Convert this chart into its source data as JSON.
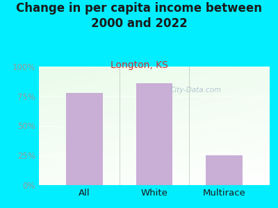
{
  "title": "Change in per capita income between\n2000 and 2022",
  "subtitle": "Longton, KS",
  "categories": [
    "All",
    "White",
    "Multirace"
  ],
  "values": [
    78,
    86,
    25
  ],
  "bar_color": "#c9aed6",
  "title_fontsize": 12,
  "subtitle_fontsize": 10,
  "subtitle_color": "#cc3333",
  "title_color": "#1a1a1a",
  "background_color": "#00eeff",
  "plot_bg_color_topleft": "#ddeedd",
  "plot_bg_color_right": "#f5f5f0",
  "tick_color": "#999999",
  "tick_fontsize": 8.5,
  "xlabel_fontsize": 9.5,
  "ylim": [
    0,
    100
  ],
  "yticks": [
    0,
    25,
    50,
    75,
    100
  ],
  "ytick_labels": [
    "0%",
    "25%",
    "50%",
    "75%",
    "100%"
  ],
  "watermark": "City-Data.com",
  "watermark_color": "#aabbcc",
  "separator_color": "#bbccbb",
  "bottom_line_color": "#aaaaaa"
}
